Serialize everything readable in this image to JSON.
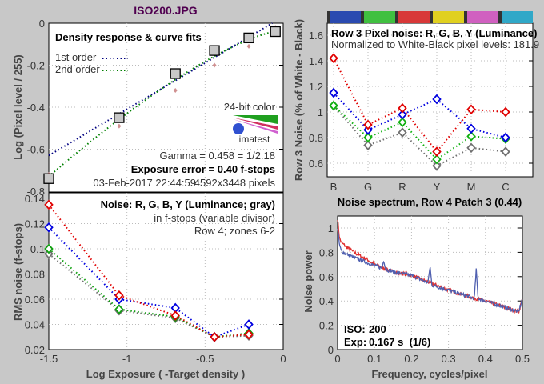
{
  "title": "ISO200.JPG",
  "chart_data": [
    {
      "type": "line",
      "title": "Density response & curve fits",
      "ylabel": "Log (Pixel level / 255)",
      "xlim": [
        -1.5,
        0
      ],
      "ylim": [
        -0.8,
        0
      ],
      "yticks": [
        "0",
        "-0.2",
        "-0.4",
        "-0.6",
        "-0.8"
      ],
      "grid": true,
      "legend": [
        "1st order",
        "2nd order"
      ],
      "legend_position": "top-left",
      "series": [
        {
          "name": "measured",
          "x": [
            -1.5,
            -1.05,
            -0.69,
            -0.44,
            -0.22,
            -0.05
          ],
          "y": [
            -0.74,
            -0.45,
            -0.24,
            -0.13,
            -0.07,
            -0.04
          ],
          "color": "#888888"
        },
        {
          "x": [
            -1.5,
            -1.05,
            -0.69,
            -0.44,
            -0.22,
            -0.05
          ],
          "y": [
            -0.72,
            -0.49,
            -0.32,
            -0.2,
            -0.11,
            -0.02
          ],
          "color": "#d09090"
        },
        {
          "name": "1st order",
          "x": [
            -1.5,
            -0.07
          ],
          "y": [
            -0.63,
            0
          ],
          "color": "#000080"
        },
        {
          "name": "2nd order",
          "x": [
            -1.5,
            -1.2,
            -0.9,
            -0.6,
            -0.3,
            -0.05
          ],
          "y": [
            -0.73,
            -0.56,
            -0.38,
            -0.22,
            -0.11,
            -0.04
          ],
          "color": "#008000"
        }
      ],
      "annotations": {
        "color_depth": "24-bit color",
        "logo": "imatest",
        "gamma": "Gamma = 0.458 = 1/2.18",
        "exposure_error": "Exposure error = 0.40 f-stops",
        "date": "03-Feb-2017 22:44:59",
        "size": "4592x3448 pixels"
      }
    },
    {
      "type": "line",
      "title": "Noise: R, G, B, Y (Luminance; gray)",
      "subtitle": "in f-stops (variable divisor)",
      "note": "Row 4; zones 6-2",
      "xlabel": "Log Exposure ( -Target density )",
      "ylabel": "RMS noise (f-stops)",
      "xlim": [
        -1.5,
        0
      ],
      "ylim": [
        0.02,
        0.14
      ],
      "xticks": [
        "-1.5",
        "-1",
        "-0.5",
        "0"
      ],
      "yticks": [
        "0.14",
        "0.12",
        "0.1",
        "0.08",
        "0.06",
        "0.04",
        "0.02"
      ],
      "grid": true,
      "x": [
        -1.5,
        -1.05,
        -0.69,
        -0.44,
        -0.22
      ],
      "series": [
        {
          "name": "R",
          "values": [
            0.135,
            0.063,
            0.047,
            0.03,
            0.032
          ],
          "color": "#e00000"
        },
        {
          "name": "B",
          "values": [
            0.117,
            0.06,
            0.053,
            0.03,
            0.04
          ],
          "color": "#0000e0"
        },
        {
          "name": "G",
          "values": [
            0.1,
            0.052,
            0.046,
            0.03,
            0.033
          ],
          "color": "#10a010"
        },
        {
          "name": "Y",
          "values": [
            0.096,
            0.051,
            0.045,
            0.03,
            0.031
          ],
          "color": "#707070"
        }
      ]
    },
    {
      "type": "line",
      "title": "Row 3 Pixel noise: R, G, B, Y (Luminance)",
      "subtitle": "Normalized to White-Black pixel levels: 181.9",
      "ylabel": "Row 3 Noise (% of White - Black)",
      "categories": [
        "B",
        "G",
        "R",
        "Y",
        "M",
        "C"
      ],
      "category_colors": [
        "#2a4ab0",
        "#40c040",
        "#d83838",
        "#e0d020",
        "#d060c0",
        "#30a8c8"
      ],
      "ylim": [
        0.5,
        1.7
      ],
      "yticks": [
        "1.6",
        "1.4",
        "1.2",
        "1",
        "0.8",
        "0.6"
      ],
      "grid": true,
      "series": [
        {
          "name": "R",
          "values": [
            1.42,
            0.9,
            1.03,
            0.69,
            1.02,
            1.0
          ],
          "color": "#e00000"
        },
        {
          "name": "B",
          "values": [
            1.15,
            0.86,
            0.98,
            1.1,
            0.87,
            0.8
          ],
          "color": "#0000e0"
        },
        {
          "name": "G",
          "values": [
            1.05,
            0.8,
            0.92,
            0.63,
            0.81,
            0.79
          ],
          "color": "#10b010"
        },
        {
          "name": "Y",
          "values": [
            1.05,
            0.74,
            0.84,
            0.58,
            0.72,
            0.69
          ],
          "color": "#707070"
        }
      ]
    },
    {
      "type": "line",
      "title": "Noise spectrum, Row 4 Patch 3 (0.44)",
      "xlabel": "Frequency, cycles/pixel",
      "ylabel": "Noise power",
      "xlim": [
        0,
        0.5
      ],
      "ylim": [
        0,
        1.1
      ],
      "xticks": [
        "0",
        "0.1",
        "0.2",
        "0.3",
        "0.4",
        "0.5"
      ],
      "yticks": [
        "1",
        "0.8",
        "0.6",
        "0.4",
        "0.2",
        "0"
      ],
      "grid": true,
      "iso_label": "ISO:",
      "iso": "200",
      "exp_label": "Exp:",
      "exp": "0.167 s  (1/6)",
      "series": [
        {
          "name": "R",
          "color": "#e03030",
          "x": [
            0,
            0.005,
            0.01,
            0.03,
            0.05,
            0.08,
            0.1,
            0.15,
            0.2,
            0.25,
            0.3,
            0.35,
            0.4,
            0.45,
            0.49,
            0.5
          ],
          "y": [
            1.08,
            0.92,
            0.88,
            0.83,
            0.79,
            0.74,
            0.7,
            0.64,
            0.61,
            0.55,
            0.49,
            0.44,
            0.4,
            0.35,
            0.31,
            0.42
          ]
        },
        {
          "name": "Y",
          "color": "#5060b0",
          "x": [
            0,
            0.005,
            0.01,
            0.02,
            0.05,
            0.1,
            0.12,
            0.125,
            0.13,
            0.15,
            0.2,
            0.245,
            0.25,
            0.255,
            0.3,
            0.35,
            0.37,
            0.375,
            0.38,
            0.4,
            0.45,
            0.49,
            0.5
          ],
          "y": [
            1.0,
            0.86,
            0.81,
            0.79,
            0.75,
            0.69,
            0.67,
            0.74,
            0.66,
            0.64,
            0.61,
            0.55,
            0.69,
            0.53,
            0.49,
            0.44,
            0.42,
            0.66,
            0.42,
            0.4,
            0.35,
            0.31,
            0.42
          ]
        }
      ]
    }
  ]
}
